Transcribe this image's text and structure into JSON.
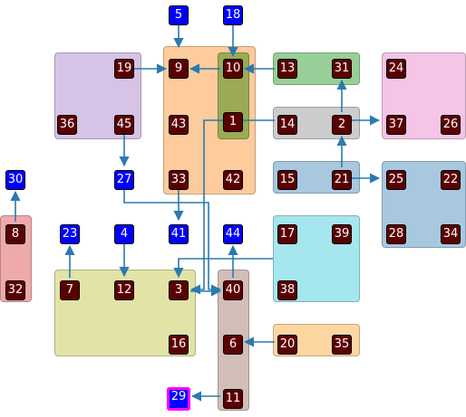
{
  "colors": {
    "edge": "#2a7ab0",
    "node_dark": "#5a0000",
    "node_blue": "#0000ff",
    "highlight": "#ff00ff"
  },
  "groups": [
    {
      "id": "g-purple",
      "color": "#d6c3e6"
    },
    {
      "id": "g-orange",
      "color": "#fdcb9c"
    },
    {
      "id": "g-olive",
      "color": "#9aaa55"
    },
    {
      "id": "g-green",
      "color": "#98cf98"
    },
    {
      "id": "g-pink",
      "color": "#f4c5e6"
    },
    {
      "id": "g-gray",
      "color": "#cccccc"
    },
    {
      "id": "g-steel",
      "color": "#a8c8e0"
    },
    {
      "id": "g-steel2",
      "color": "#a8c8e0"
    },
    {
      "id": "g-red",
      "color": "#eeaaaa"
    },
    {
      "id": "g-khaki",
      "color": "#e2e3a6"
    },
    {
      "id": "g-cyan",
      "color": "#a6e6ee"
    },
    {
      "id": "g-taupe",
      "color": "#d3bdb8"
    },
    {
      "id": "g-peach",
      "color": "#fdd6a2"
    }
  ],
  "nodes": [
    {
      "label": "5",
      "kind": "blue"
    },
    {
      "label": "18",
      "kind": "blue"
    },
    {
      "label": "19",
      "kind": "dark"
    },
    {
      "label": "9",
      "kind": "dark"
    },
    {
      "label": "10",
      "kind": "dark"
    },
    {
      "label": "13",
      "kind": "dark"
    },
    {
      "label": "31",
      "kind": "dark"
    },
    {
      "label": "24",
      "kind": "dark"
    },
    {
      "label": "36",
      "kind": "dark"
    },
    {
      "label": "45",
      "kind": "dark"
    },
    {
      "label": "43",
      "kind": "dark"
    },
    {
      "label": "1",
      "kind": "dark"
    },
    {
      "label": "14",
      "kind": "dark"
    },
    {
      "label": "2",
      "kind": "dark"
    },
    {
      "label": "37",
      "kind": "dark"
    },
    {
      "label": "26",
      "kind": "dark"
    },
    {
      "label": "30",
      "kind": "blue"
    },
    {
      "label": "27",
      "kind": "blue"
    },
    {
      "label": "33",
      "kind": "dark"
    },
    {
      "label": "42",
      "kind": "dark"
    },
    {
      "label": "15",
      "kind": "dark"
    },
    {
      "label": "21",
      "kind": "dark"
    },
    {
      "label": "25",
      "kind": "dark"
    },
    {
      "label": "22",
      "kind": "dark"
    },
    {
      "label": "8",
      "kind": "dark"
    },
    {
      "label": "23",
      "kind": "blue"
    },
    {
      "label": "4",
      "kind": "blue"
    },
    {
      "label": "41",
      "kind": "blue"
    },
    {
      "label": "44",
      "kind": "blue"
    },
    {
      "label": "17",
      "kind": "dark"
    },
    {
      "label": "39",
      "kind": "dark"
    },
    {
      "label": "28",
      "kind": "dark"
    },
    {
      "label": "34",
      "kind": "dark"
    },
    {
      "label": "32",
      "kind": "dark"
    },
    {
      "label": "7",
      "kind": "dark"
    },
    {
      "label": "12",
      "kind": "dark"
    },
    {
      "label": "3",
      "kind": "dark"
    },
    {
      "label": "40",
      "kind": "dark"
    },
    {
      "label": "38",
      "kind": "dark"
    },
    {
      "label": "16",
      "kind": "dark"
    },
    {
      "label": "6",
      "kind": "dark"
    },
    {
      "label": "20",
      "kind": "dark"
    },
    {
      "label": "35",
      "kind": "dark"
    },
    {
      "label": "29",
      "kind": "blue",
      "highlight": true
    },
    {
      "label": "11",
      "kind": "dark"
    }
  ],
  "edges": [
    {
      "from": "5",
      "to": "9"
    },
    {
      "from": "18",
      "to": "10"
    },
    {
      "from": "19",
      "to": "9"
    },
    {
      "from": "10",
      "to": "9"
    },
    {
      "from": "13",
      "to": "10"
    },
    {
      "from": "2",
      "to": "31"
    },
    {
      "from": "2",
      "to": "37"
    },
    {
      "from": "21",
      "to": "2"
    },
    {
      "from": "21",
      "to": "25"
    },
    {
      "from": "45",
      "to": "27"
    },
    {
      "from": "27",
      "to": "40"
    },
    {
      "from": "33",
      "to": "41"
    },
    {
      "from": "14",
      "to": "3"
    },
    {
      "from": "8",
      "to": "30"
    },
    {
      "from": "7",
      "to": "23"
    },
    {
      "from": "4",
      "to": "12"
    },
    {
      "from": "40",
      "to": "44"
    },
    {
      "from": "3",
      "to": "40"
    },
    {
      "from": "38",
      "to": "3"
    },
    {
      "from": "20",
      "to": "6"
    },
    {
      "from": "11",
      "to": "29"
    }
  ]
}
